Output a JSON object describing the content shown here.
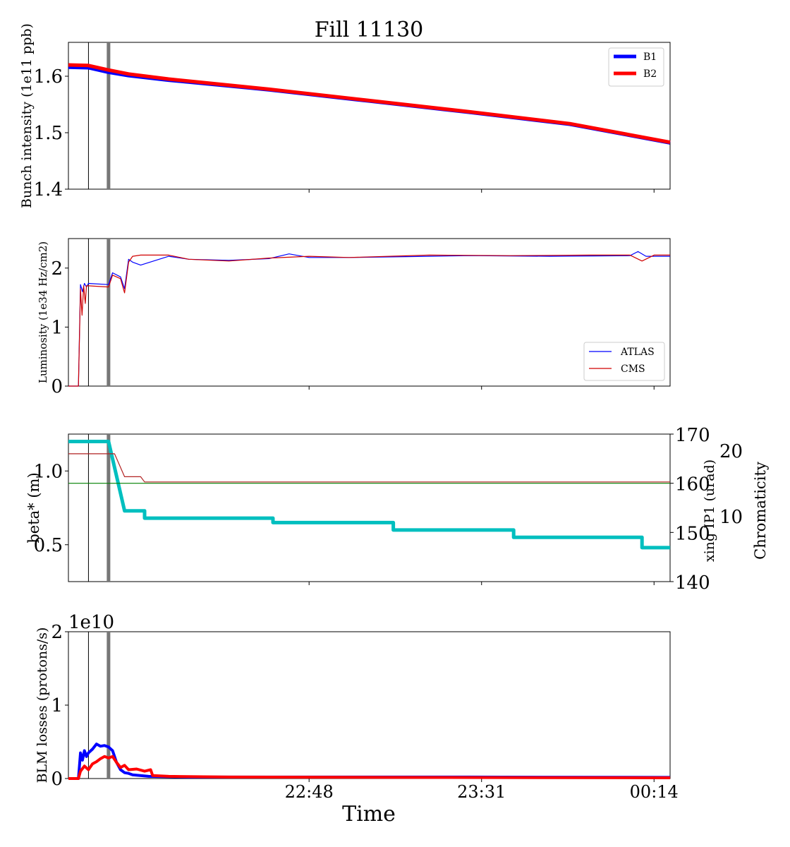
{
  "title": "Fill 11130",
  "xlabel": "Time",
  "x_ticks": [
    {
      "t": 60,
      "label": "22:48"
    },
    {
      "t": 103,
      "label": "23:31"
    },
    {
      "t": 146,
      "label": "00:14"
    }
  ],
  "markers": [
    {
      "t": 5,
      "kind": "thin-black"
    },
    {
      "t": 10,
      "kind": "thick-gray"
    }
  ],
  "chart_data": [
    {
      "type": "line",
      "panel": "intensity",
      "ylabel": "Bunch intensity (1e11 ppb)",
      "ylim": [
        1.4,
        1.66
      ],
      "yticks": [
        "1.4",
        "1.5",
        "1.6"
      ],
      "xlim_minutes": [
        0,
        150
      ],
      "legend": "top-right",
      "series": [
        {
          "name": "B1",
          "color": "#0000ff",
          "x": [
            0,
            5,
            10,
            15,
            25,
            50,
            75,
            100,
            125,
            150
          ],
          "y": [
            1.616,
            1.615,
            1.607,
            1.601,
            1.593,
            1.576,
            1.556,
            1.536,
            1.515,
            1.482
          ]
        },
        {
          "name": "B2",
          "color": "#ff0000",
          "x": [
            0,
            5,
            10,
            15,
            25,
            50,
            75,
            100,
            125,
            150
          ],
          "y": [
            1.62,
            1.619,
            1.611,
            1.604,
            1.595,
            1.577,
            1.557,
            1.537,
            1.516,
            1.483
          ]
        }
      ]
    },
    {
      "type": "line",
      "panel": "luminosity",
      "ylabel": "Luminosity (1e34 Hz/cm2)",
      "ylim": [
        0,
        2.5
      ],
      "yticks": [
        "0",
        "1",
        "2"
      ],
      "xlim_minutes": [
        0,
        150
      ],
      "legend": "bottom-right",
      "series": [
        {
          "name": "ATLAS",
          "color": "#0000ff",
          "x": [
            0,
            2.5,
            3.0,
            3.5,
            4.0,
            4.5,
            5,
            10,
            11,
            13,
            14,
            15,
            16,
            18,
            25,
            30,
            40,
            50,
            55,
            60,
            70,
            90,
            100,
            120,
            140,
            142,
            144,
            150
          ],
          "y": [
            0,
            0,
            1.72,
            1.6,
            1.74,
            1.68,
            1.74,
            1.72,
            1.92,
            1.85,
            1.65,
            2.15,
            2.1,
            2.05,
            2.2,
            2.15,
            2.13,
            2.16,
            2.24,
            2.18,
            2.18,
            2.2,
            2.21,
            2.2,
            2.21,
            2.28,
            2.2,
            2.2
          ]
        },
        {
          "name": "CMS",
          "color": "#d00000",
          "x": [
            0,
            2.5,
            3.0,
            3.4,
            3.8,
            4.2,
            4.5,
            5,
            10,
            11,
            13,
            14,
            15,
            16,
            18,
            25,
            30,
            40,
            50,
            60,
            70,
            90,
            110,
            130,
            140,
            143,
            146,
            150
          ],
          "y": [
            0,
            0,
            1.65,
            1.2,
            1.7,
            1.4,
            1.7,
            1.7,
            1.68,
            1.88,
            1.82,
            1.58,
            2.1,
            2.2,
            2.22,
            2.22,
            2.15,
            2.12,
            2.17,
            2.2,
            2.18,
            2.22,
            2.21,
            2.22,
            2.22,
            2.12,
            2.22,
            2.22
          ]
        }
      ]
    },
    {
      "type": "line",
      "panel": "optics",
      "xlim_minutes": [
        0,
        150
      ],
      "axes": [
        {
          "name": "beta* (m)",
          "side": "left",
          "color": "#00bfbf",
          "ylim": [
            0.25,
            1.25
          ],
          "yticks": [
            "0.5",
            "1.0"
          ]
        },
        {
          "name": "xing IP1 (urad)",
          "side": "right",
          "color": "#008000",
          "ylim": [
            140,
            170
          ],
          "yticks": [
            "140",
            "150",
            "160",
            "170"
          ]
        },
        {
          "name": "Chromaticity",
          "side": "right-outer",
          "color": "#b22222",
          "ylim": [
            0,
            22.5
          ],
          "yticks": [
            "10",
            "20"
          ]
        }
      ],
      "series": [
        {
          "axis": "beta* (m)",
          "color": "#00bfbf",
          "x": [
            0,
            10,
            14,
            14,
            19,
            19,
            51,
            51,
            81,
            81,
            111,
            111,
            143,
            143,
            150
          ],
          "y": [
            1.2,
            1.2,
            0.73,
            0.73,
            0.73,
            0.68,
            0.68,
            0.65,
            0.65,
            0.6,
            0.6,
            0.55,
            0.55,
            0.48,
            0.48
          ]
        },
        {
          "axis": "xing IP1 (urad)",
          "color": "#008000",
          "x": [
            0,
            150
          ],
          "y": [
            160,
            160
          ]
        },
        {
          "axis": "Chromaticity",
          "color": "#b22222",
          "x": [
            0,
            10,
            11.5,
            14,
            18,
            19,
            150
          ],
          "y": [
            19.5,
            19.5,
            19.5,
            16,
            16,
            15.2,
            15.2
          ]
        }
      ]
    },
    {
      "type": "line",
      "panel": "blm",
      "ylabel": "BLM losses (protons/s)",
      "offset_label": "1e10",
      "ylim": [
        0,
        2
      ],
      "yticks": [
        "0",
        "1",
        "2"
      ],
      "xlim_minutes": [
        0,
        150
      ],
      "series": [
        {
          "name": "B1",
          "color": "#0000ff",
          "x": [
            0,
            2.5,
            3,
            3.5,
            4,
            4.5,
            5,
            6,
            7,
            8,
            9,
            10,
            11,
            12,
            13,
            14,
            15,
            16,
            20,
            30,
            60,
            100,
            150
          ],
          "y": [
            0,
            0,
            0.35,
            0.25,
            0.38,
            0.3,
            0.35,
            0.4,
            0.47,
            0.44,
            0.45,
            0.43,
            0.38,
            0.22,
            0.12,
            0.08,
            0.07,
            0.05,
            0.03,
            0.02,
            0.02,
            0.02,
            0.015
          ]
        },
        {
          "name": "B2",
          "color": "#ff0000",
          "x": [
            0,
            2.5,
            3,
            4,
            5,
            6,
            7,
            8,
            9,
            10,
            11,
            12,
            13,
            14,
            15,
            17,
            19,
            20.5,
            21,
            25,
            40,
            80,
            150
          ],
          "y": [
            0,
            0,
            0.1,
            0.17,
            0.12,
            0.2,
            0.23,
            0.27,
            0.3,
            0.28,
            0.3,
            0.22,
            0.15,
            0.18,
            0.12,
            0.13,
            0.1,
            0.12,
            0.04,
            0.03,
            0.02,
            0.015,
            0.01
          ]
        }
      ]
    }
  ]
}
